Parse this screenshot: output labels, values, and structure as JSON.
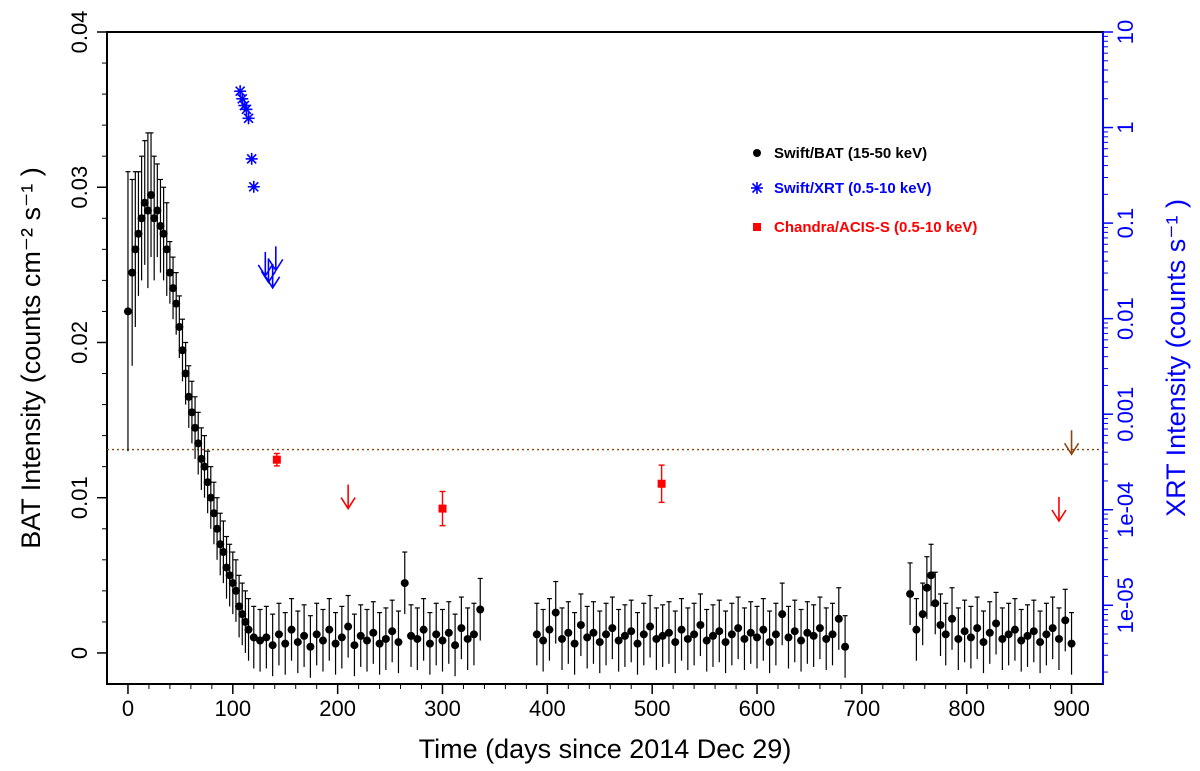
{
  "chart_data": {
    "type": "scatter",
    "title": "",
    "xlabel": "Time (days since 2014 Dec 29)",
    "ylabel_left": "BAT Intensity (counts cm⁻² s⁻¹ )",
    "ylabel_right": "XRT Intensity (counts s⁻¹ )",
    "xlim": [
      -20,
      930
    ],
    "ylim_left": [
      -0.002,
      0.04
    ],
    "ylim_right_log": [
      1.5e-06,
      10
    ],
    "x_ticks": [
      "0",
      "100",
      "200",
      "300",
      "400",
      "500",
      "600",
      "700",
      "800",
      "900"
    ],
    "y_ticks_left": [
      "0",
      "0.01",
      "0.02",
      "0.03",
      "0.04"
    ],
    "y_ticks_right": [
      "1e-05",
      "1e-04",
      "0.001",
      "0.01",
      "0.1",
      "1",
      "10"
    ],
    "legend_placement": "top-right",
    "threshold_line": {
      "y_left": 0.0131,
      "color": "#8b4513",
      "style": "dotted"
    },
    "colors": {
      "bat": "#000000",
      "xrt": "#0000ff",
      "chandra": "#ff0000",
      "threshold": "#8b4513",
      "right_axis": "#0000ff"
    },
    "series": [
      {
        "name": "Swift/BAT (15-50 keV)",
        "marker": "circle",
        "color": "#000000",
        "points": [
          [
            0,
            0.022,
            0.009
          ],
          [
            4,
            0.0245,
            0.006
          ],
          [
            7,
            0.026,
            0.005
          ],
          [
            10,
            0.027,
            0.004
          ],
          [
            13,
            0.028,
            0.004
          ],
          [
            16,
            0.029,
            0.004
          ],
          [
            19,
            0.0285,
            0.005
          ],
          [
            22,
            0.0295,
            0.004
          ],
          [
            25,
            0.028,
            0.004
          ],
          [
            28,
            0.0285,
            0.003
          ],
          [
            31,
            0.0275,
            0.003
          ],
          [
            34,
            0.027,
            0.003
          ],
          [
            37,
            0.026,
            0.003
          ],
          [
            40,
            0.0245,
            0.002
          ],
          [
            43,
            0.0235,
            0.002
          ],
          [
            46,
            0.0225,
            0.002
          ],
          [
            49,
            0.021,
            0.002
          ],
          [
            52,
            0.0195,
            0.002
          ],
          [
            55,
            0.018,
            0.002
          ],
          [
            58,
            0.0165,
            0.002
          ],
          [
            61,
            0.0155,
            0.002
          ],
          [
            64,
            0.0145,
            0.002
          ],
          [
            67,
            0.0135,
            0.002
          ],
          [
            70,
            0.0125,
            0.002
          ],
          [
            73,
            0.012,
            0.002
          ],
          [
            76,
            0.011,
            0.002
          ],
          [
            79,
            0.01,
            0.002
          ],
          [
            82,
            0.009,
            0.002
          ],
          [
            85,
            0.008,
            0.002
          ],
          [
            88,
            0.007,
            0.002
          ],
          [
            91,
            0.0065,
            0.002
          ],
          [
            94,
            0.0055,
            0.002
          ],
          [
            97,
            0.005,
            0.002
          ],
          [
            100,
            0.0045,
            0.002
          ],
          [
            103,
            0.004,
            0.002
          ],
          [
            106,
            0.003,
            0.002
          ],
          [
            109,
            0.0025,
            0.002
          ],
          [
            112,
            0.002,
            0.002
          ],
          [
            115,
            0.0015,
            0.002
          ],
          [
            120,
            0.001,
            0.002
          ],
          [
            126,
            0.0008,
            0.002
          ],
          [
            132,
            0.001,
            0.002
          ],
          [
            138,
            0.0005,
            0.002
          ],
          [
            144,
            0.0012,
            0.002
          ],
          [
            150,
            0.0006,
            0.002
          ],
          [
            156,
            0.0015,
            0.002
          ],
          [
            162,
            0.0007,
            0.002
          ],
          [
            168,
            0.0011,
            0.002
          ],
          [
            174,
            0.0004,
            0.002
          ],
          [
            180,
            0.0012,
            0.002
          ],
          [
            186,
            0.0008,
            0.002
          ],
          [
            192,
            0.0015,
            0.002
          ],
          [
            198,
            0.0006,
            0.002
          ],
          [
            204,
            0.001,
            0.002
          ],
          [
            210,
            0.0017,
            0.002
          ],
          [
            216,
            0.0005,
            0.002
          ],
          [
            222,
            0.0011,
            0.002
          ],
          [
            228,
            0.0008,
            0.002
          ],
          [
            234,
            0.0013,
            0.002
          ],
          [
            240,
            0.0006,
            0.002
          ],
          [
            246,
            0.0009,
            0.002
          ],
          [
            252,
            0.0014,
            0.002
          ],
          [
            258,
            0.0007,
            0.002
          ],
          [
            264,
            0.0045,
            0.002
          ],
          [
            270,
            0.0011,
            0.002
          ],
          [
            276,
            0.0009,
            0.002
          ],
          [
            282,
            0.0015,
            0.002
          ],
          [
            288,
            0.0006,
            0.002
          ],
          [
            294,
            0.0012,
            0.002
          ],
          [
            300,
            0.0008,
            0.002
          ],
          [
            306,
            0.0013,
            0.002
          ],
          [
            312,
            0.0005,
            0.002
          ],
          [
            318,
            0.0016,
            0.002
          ],
          [
            324,
            0.0009,
            0.002
          ],
          [
            330,
            0.0012,
            0.002
          ],
          [
            336,
            0.0028,
            0.002
          ],
          [
            390,
            0.0012,
            0.002
          ],
          [
            396,
            0.0008,
            0.002
          ],
          [
            402,
            0.0015,
            0.002
          ],
          [
            408,
            0.0026,
            0.002
          ],
          [
            414,
            0.0009,
            0.002
          ],
          [
            420,
            0.0013,
            0.002
          ],
          [
            426,
            0.0006,
            0.002
          ],
          [
            432,
            0.0018,
            0.002
          ],
          [
            438,
            0.001,
            0.002
          ],
          [
            444,
            0.0013,
            0.002
          ],
          [
            450,
            0.0007,
            0.002
          ],
          [
            456,
            0.0012,
            0.002
          ],
          [
            462,
            0.0016,
            0.002
          ],
          [
            468,
            0.0008,
            0.002
          ],
          [
            474,
            0.0011,
            0.002
          ],
          [
            480,
            0.0014,
            0.002
          ],
          [
            486,
            0.0006,
            0.002
          ],
          [
            492,
            0.0012,
            0.002
          ],
          [
            498,
            0.0017,
            0.002
          ],
          [
            504,
            0.0009,
            0.002
          ],
          [
            510,
            0.0011,
            0.002
          ],
          [
            516,
            0.0013,
            0.002
          ],
          [
            522,
            0.0007,
            0.002
          ],
          [
            528,
            0.0015,
            0.002
          ],
          [
            534,
            0.0009,
            0.002
          ],
          [
            540,
            0.0012,
            0.002
          ],
          [
            546,
            0.0018,
            0.002
          ],
          [
            552,
            0.0008,
            0.002
          ],
          [
            558,
            0.0011,
            0.002
          ],
          [
            564,
            0.0014,
            0.002
          ],
          [
            570,
            0.0007,
            0.002
          ],
          [
            576,
            0.0012,
            0.002
          ],
          [
            582,
            0.0016,
            0.002
          ],
          [
            588,
            0.0009,
            0.002
          ],
          [
            594,
            0.0013,
            0.002
          ],
          [
            600,
            0.001,
            0.002
          ],
          [
            606,
            0.0015,
            0.002
          ],
          [
            612,
            0.0007,
            0.002
          ],
          [
            618,
            0.0012,
            0.002
          ],
          [
            624,
            0.0025,
            0.002
          ],
          [
            630,
            0.001,
            0.002
          ],
          [
            636,
            0.0014,
            0.002
          ],
          [
            642,
            0.0008,
            0.002
          ],
          [
            648,
            0.0013,
            0.002
          ],
          [
            654,
            0.0011,
            0.002
          ],
          [
            660,
            0.0016,
            0.002
          ],
          [
            666,
            0.0009,
            0.002
          ],
          [
            672,
            0.0012,
            0.002
          ],
          [
            678,
            0.0022,
            0.002
          ],
          [
            684,
            0.0004,
            0.002
          ],
          [
            746,
            0.0038,
            0.002
          ],
          [
            752,
            0.0015,
            0.002
          ],
          [
            758,
            0.0025,
            0.002
          ],
          [
            762,
            0.0042,
            0.002
          ],
          [
            766,
            0.005,
            0.002
          ],
          [
            770,
            0.0032,
            0.002
          ],
          [
            775,
            0.0018,
            0.002
          ],
          [
            780,
            0.0012,
            0.002
          ],
          [
            786,
            0.0022,
            0.002
          ],
          [
            792,
            0.0009,
            0.002
          ],
          [
            798,
            0.0014,
            0.002
          ],
          [
            804,
            0.001,
            0.002
          ],
          [
            810,
            0.0016,
            0.002
          ],
          [
            816,
            0.0007,
            0.002
          ],
          [
            822,
            0.0013,
            0.002
          ],
          [
            828,
            0.0019,
            0.002
          ],
          [
            834,
            0.0009,
            0.002
          ],
          [
            840,
            0.0012,
            0.002
          ],
          [
            846,
            0.0015,
            0.002
          ],
          [
            852,
            0.0008,
            0.002
          ],
          [
            858,
            0.0011,
            0.002
          ],
          [
            864,
            0.0014,
            0.002
          ],
          [
            870,
            0.0007,
            0.002
          ],
          [
            876,
            0.0012,
            0.002
          ],
          [
            882,
            0.0016,
            0.002
          ],
          [
            888,
            0.0009,
            0.002
          ],
          [
            894,
            0.0021,
            0.002
          ],
          [
            900,
            0.0006,
            0.002
          ]
        ]
      },
      {
        "name": "Swift/XRT (0.5-10 keV)",
        "marker": "asterisk",
        "color": "#0000ff",
        "points": [
          [
            107,
            2.4
          ],
          [
            109,
            2.0
          ],
          [
            111,
            1.7
          ],
          [
            113,
            1.55
          ],
          [
            115,
            1.25
          ],
          [
            118,
            0.47
          ],
          [
            120,
            0.24
          ]
        ]
      },
      {
        "name": "Chandra/ACIS-S (0.5-10 keV)",
        "marker": "square",
        "color": "#ff0000",
        "points": [
          [
            142,
            0.01245,
            0.0004
          ],
          [
            300,
            0.0093,
            0.0011
          ],
          [
            509,
            0.0109,
            0.0012
          ]
        ]
      }
    ],
    "upper_limits": [
      {
        "x": 131,
        "y_right": 0.028,
        "color": "#0000ff"
      },
      {
        "x": 134,
        "y_right": 0.024,
        "color": "#0000ff"
      },
      {
        "x": 138,
        "y_right": 0.021,
        "color": "#0000ff"
      },
      {
        "x": 141,
        "y_right": 0.032,
        "color": "#0000ff"
      },
      {
        "x": 210,
        "y_left": 0.0093,
        "color": "#ff0000"
      },
      {
        "x": 888,
        "y_left": 0.0085,
        "color": "#ff0000"
      },
      {
        "x": 900,
        "y_left": 0.0128,
        "color": "#8b4513"
      }
    ]
  }
}
